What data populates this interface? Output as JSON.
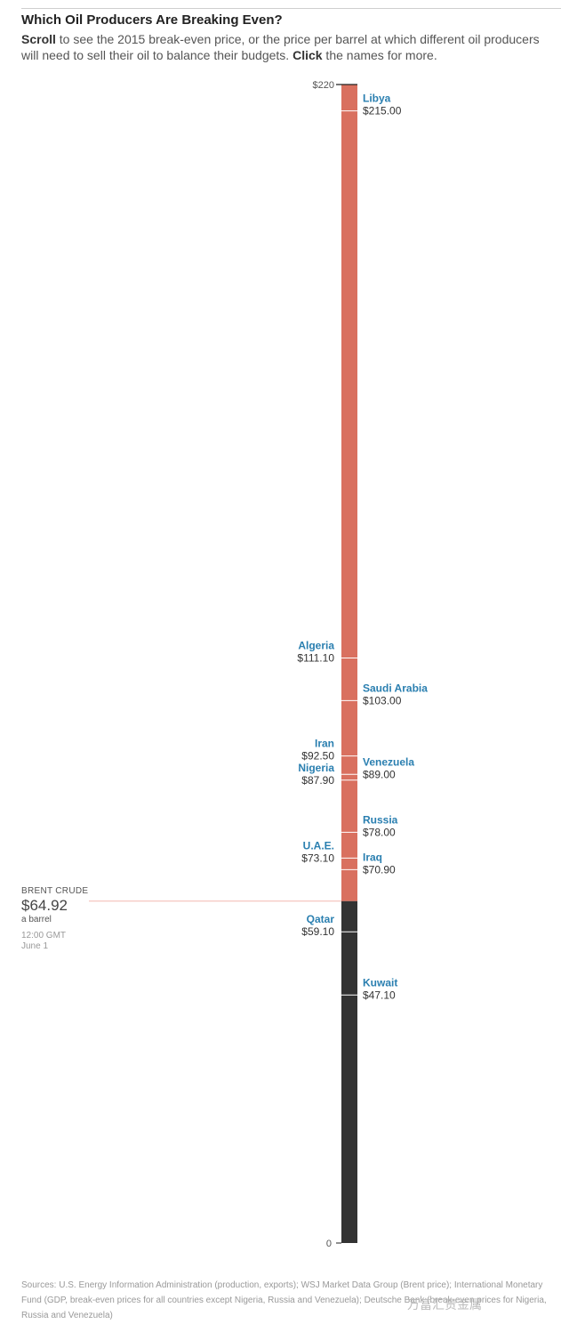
{
  "header": {
    "title": "Which Oil Producers Are Breaking Even?",
    "subtitle_scroll": "Scroll",
    "subtitle_mid": " to see the 2015 break-even price, or the price per barrel at which different oil producers will need to sell their oil to balance their budgets. ",
    "subtitle_click": "Click",
    "subtitle_end": " the names for more."
  },
  "chart_data": {
    "type": "bar",
    "title": "Which Oil Producers Are Breaking Even?",
    "ylim": [
      0,
      220
    ],
    "tick_labels": [
      "$220",
      "0"
    ],
    "grid": false,
    "points": [
      {
        "name": "Libya",
        "label": "$215.00",
        "value": 215.0,
        "side": "right"
      },
      {
        "name": "Algeria",
        "label": "$111.10",
        "value": 111.1,
        "side": "left"
      },
      {
        "name": "Saudi Arabia",
        "label": "$103.00",
        "value": 103.0,
        "side": "right"
      },
      {
        "name": "Iran",
        "label": "$92.50",
        "value": 92.5,
        "side": "left"
      },
      {
        "name": "Venezuela",
        "label": "$89.00",
        "value": 89.0,
        "side": "right"
      },
      {
        "name": "Nigeria",
        "label": "$87.90",
        "value": 87.9,
        "side": "left"
      },
      {
        "name": "Russia",
        "label": "$78.00",
        "value": 78.0,
        "side": "right"
      },
      {
        "name": "U.A.E.",
        "label": "$73.10",
        "value": 73.1,
        "side": "left"
      },
      {
        "name": "Iraq",
        "label": "$70.90",
        "value": 70.9,
        "side": "right"
      },
      {
        "name": "Qatar",
        "label": "$59.10",
        "value": 59.1,
        "side": "left"
      },
      {
        "name": "Kuwait",
        "label": "$47.10",
        "value": 47.1,
        "side": "right"
      }
    ],
    "reference": {
      "name": "Brent crude",
      "value": 64.92
    },
    "colors": {
      "above": "#d9705f",
      "below": "#333333",
      "name": "#2a7fb0",
      "value": "#333333",
      "tick": "#ffffff",
      "reference": "#f3b9b0"
    }
  },
  "brent": {
    "label": "BRENT CRUDE",
    "price": "$64.92",
    "unit": "a barrel",
    "time": "12:00 GMT",
    "date": "June 1"
  },
  "footer": {
    "sources": "Sources: U.S. Energy Information Administration (production, exports); WSJ Market Data Group (Brent price); International Monetary Fund (GDP, break-even prices for all countries except Nigeria, Russia and Venezuela); Deutsche Bank (break-even prices for Nigeria, Russia and Venezuela)",
    "watermark": "万富汇贵金属"
  }
}
